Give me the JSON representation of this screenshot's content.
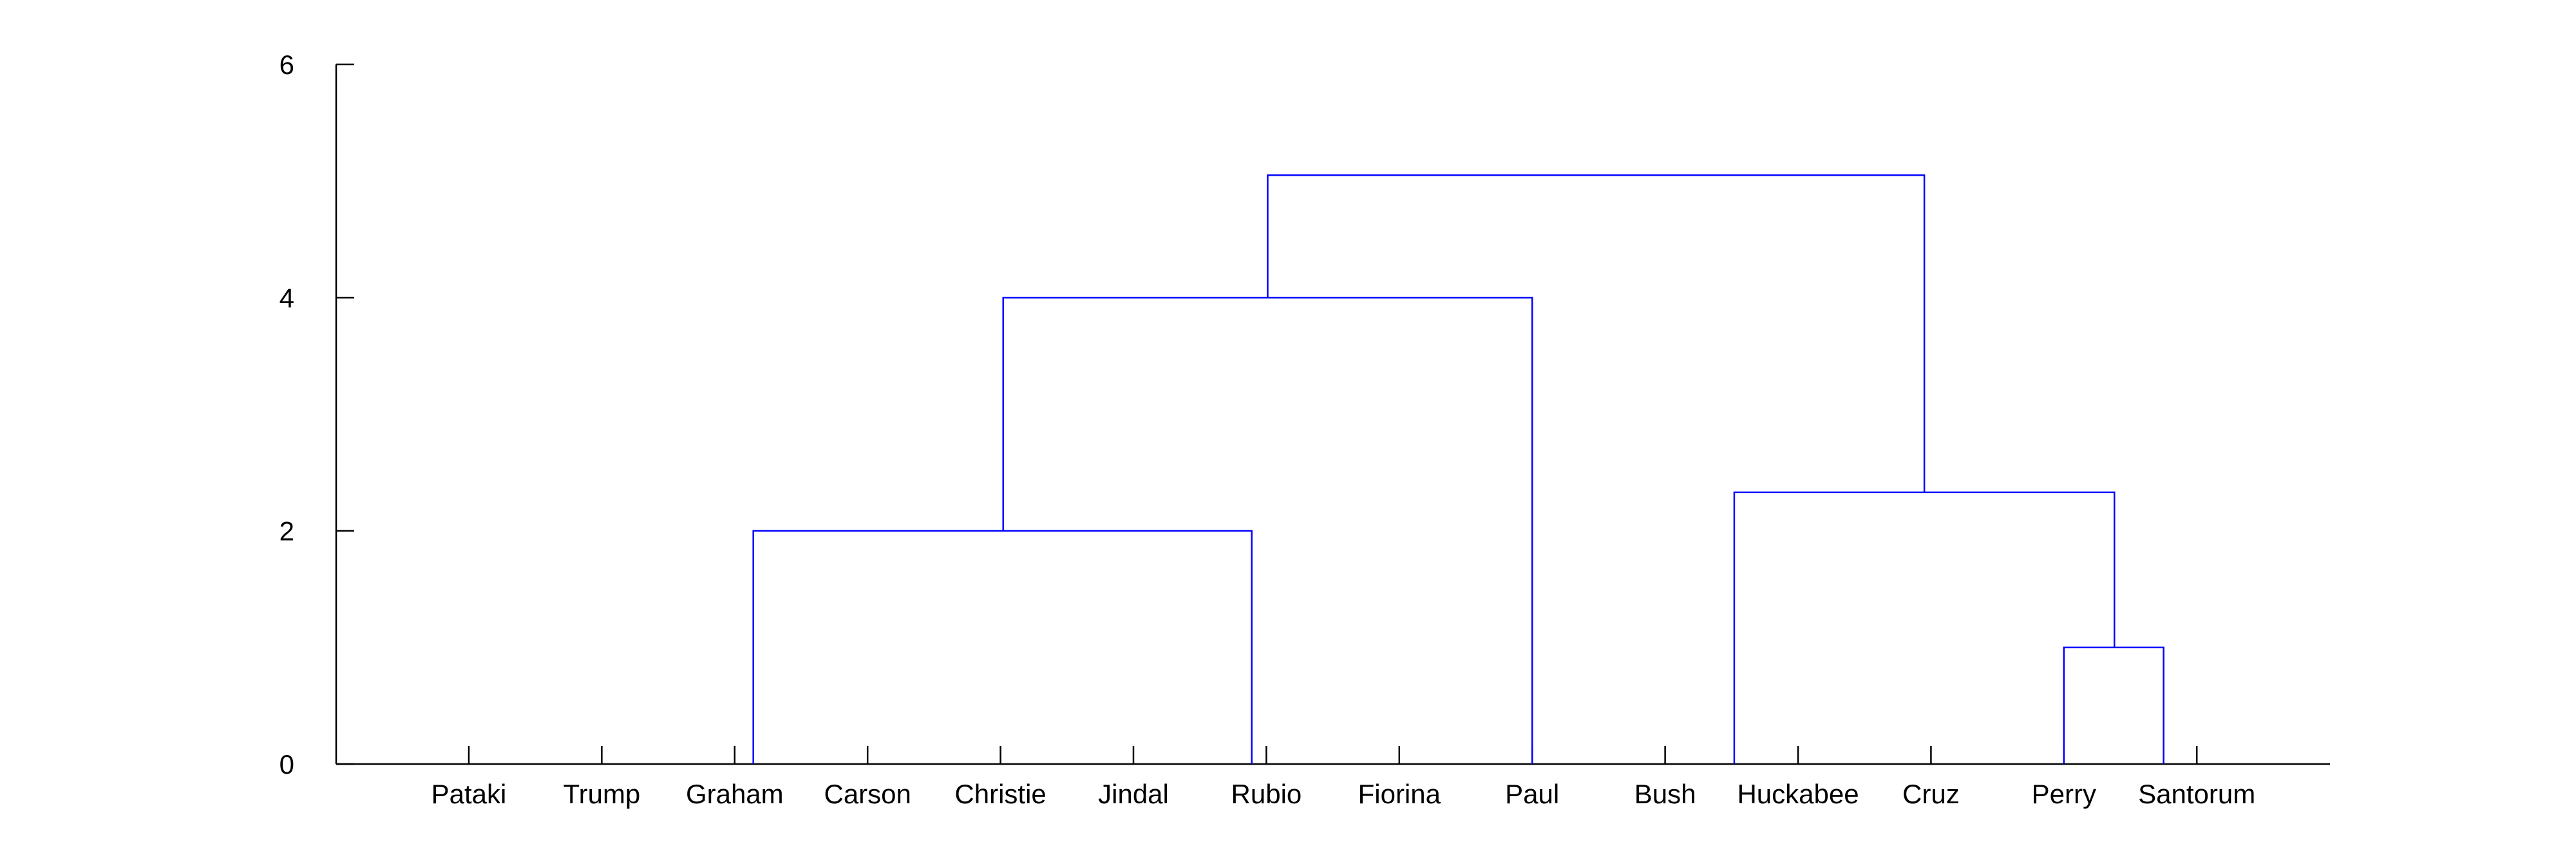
{
  "chart_data": {
    "type": "dendrogram",
    "title": "",
    "xlabel": "",
    "ylabel": "",
    "ylim": [
      0,
      6
    ],
    "yticks": [
      0,
      2,
      4,
      6
    ],
    "grid": false,
    "leaves": [
      "Pataki",
      "Trump",
      "Graham",
      "Carson",
      "Christie",
      "Jindal",
      "Rubio",
      "Fiorina",
      "Paul",
      "Bush",
      "Huckabee",
      "Cruz",
      "Perry",
      "Santorum"
    ],
    "links": [
      {
        "x_from": 2.14,
        "x_to": 5.89,
        "height": 2.0,
        "left_base": 0,
        "right_base": 0
      },
      {
        "x_from": 4.02,
        "x_to": 8.0,
        "height": 4.0,
        "left_base": 2.0,
        "right_base": 0
      },
      {
        "x_from": 12.0,
        "x_to": 12.75,
        "height": 1.0,
        "left_base": 0,
        "right_base": 0
      },
      {
        "x_from": 9.52,
        "x_to": 12.38,
        "height": 2.33,
        "left_base": 0,
        "right_base": 1.0
      },
      {
        "x_from": 6.01,
        "x_to": 10.95,
        "height": 5.05,
        "left_base": 4.0,
        "right_base": 2.33
      }
    ],
    "colors": {
      "links": "#0000ff",
      "axes": "#000000"
    }
  }
}
